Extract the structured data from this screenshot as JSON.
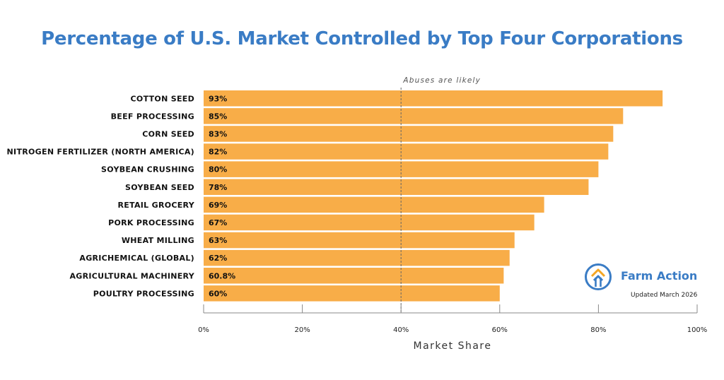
{
  "chart_data": {
    "type": "bar",
    "orientation": "horizontal",
    "title": "Percentage of U.S. Market Controlled by Top Four Corporations",
    "xlabel": "Market Share",
    "ylabel": "",
    "categories": [
      "COTTON SEED",
      "BEEF PROCESSING",
      "CORN SEED",
      "NITROGEN FERTILIZER (NORTH AMERICA)",
      "SOYBEAN CRUSHING",
      "SOYBEAN SEED",
      "RETAIL GROCERY",
      "PORK PROCESSING",
      "WHEAT MILLING",
      "AGRICHEMICAL (GLOBAL)",
      "AGRICULTURAL MACHINERY",
      "POULTRY PROCESSING"
    ],
    "values": [
      93,
      85,
      83,
      82,
      80,
      78,
      69,
      67,
      63,
      62,
      60.8,
      60
    ],
    "value_labels": [
      "93%",
      "85%",
      "83%",
      "82%",
      "80%",
      "78%",
      "69%",
      "67%",
      "63%",
      "62%",
      "60.8%",
      "60%"
    ],
    "xlim": [
      0,
      100
    ],
    "x_ticks": [
      0,
      20,
      40,
      60,
      80,
      100
    ],
    "x_tick_labels": [
      "0%",
      "20%",
      "40%",
      "60%",
      "80%",
      "100%"
    ],
    "threshold": {
      "value": 40,
      "label": "Abuses are likely",
      "style": "dashed"
    },
    "grid": false,
    "bar_color": "#f8ad48"
  },
  "brand": {
    "name": "Farm Action",
    "updated": "Updated March 2026",
    "logo_icon": "farm-action-logo-icon",
    "color": "#3a7cc5",
    "accent": "#f5a623"
  }
}
